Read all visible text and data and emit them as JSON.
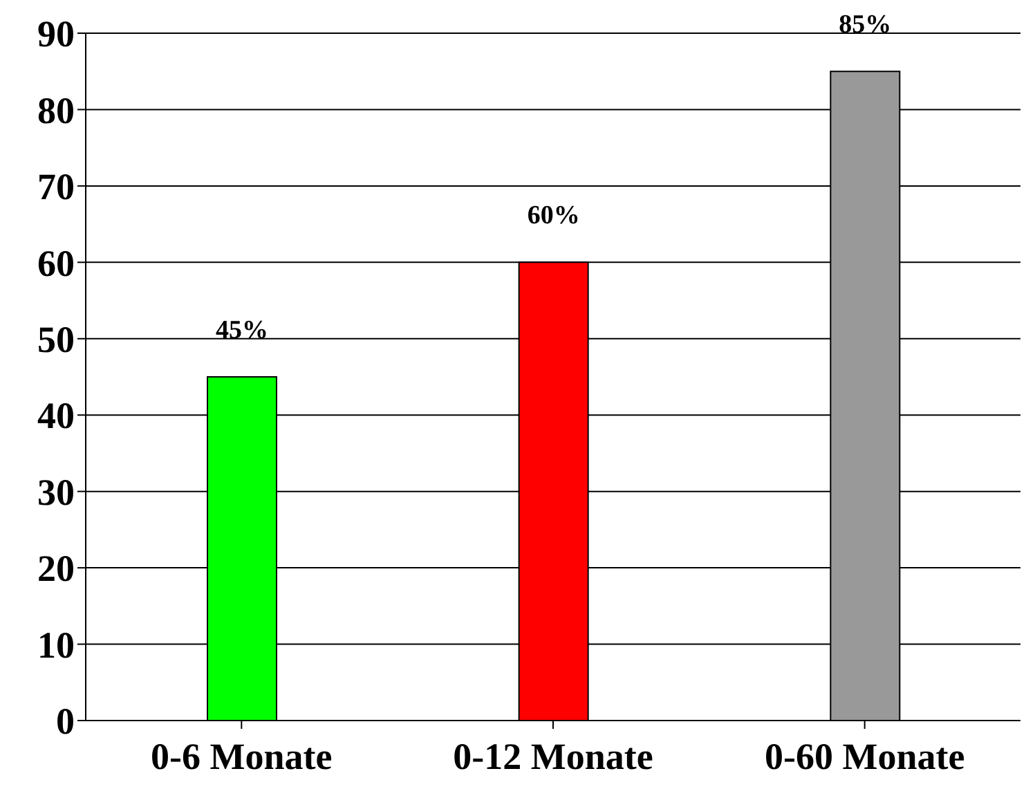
{
  "chart_data": {
    "type": "bar",
    "categories": [
      "0-6 Monate",
      "0-12 Monate",
      "0-60 Monate"
    ],
    "values": [
      45,
      60,
      85
    ],
    "colors": [
      "#00ff00",
      "#ff0000",
      "#999999"
    ],
    "value_labels": [
      "45%",
      "60%",
      "85%"
    ],
    "ylim": [
      0,
      90
    ],
    "yticks": [
      0,
      10,
      20,
      30,
      40,
      50,
      60,
      70,
      80,
      90
    ],
    "grid": "y"
  }
}
